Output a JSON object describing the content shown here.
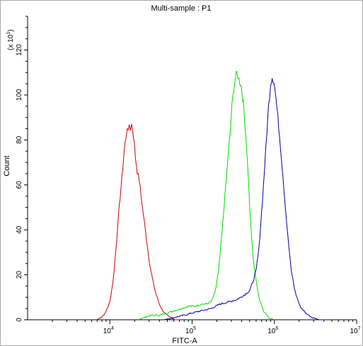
{
  "chart_data": {
    "type": "line",
    "title": "Multi-sample : P1",
    "xlabel": "FITC-A",
    "ylabel": "Count",
    "y_multiplier_label": {
      "base": "(x 10",
      "exp": "1",
      "close": ")"
    },
    "x_scale": "log",
    "xlim": [
      1000,
      10000000
    ],
    "ylim": [
      0,
      135
    ],
    "x_ticks": [
      {
        "value": 10000,
        "base": "10",
        "exp": "4"
      },
      {
        "value": 100000,
        "base": "10",
        "exp": "5"
      },
      {
        "value": 1000000,
        "base": "10",
        "exp": "6"
      },
      {
        "value": 10000000,
        "base": "10",
        "exp": "7"
      }
    ],
    "y_ticks": [
      0,
      20,
      40,
      60,
      80,
      100,
      120
    ],
    "grid": false,
    "legend": "none",
    "series": [
      {
        "color": "#cc0000",
        "points": [
          [
            6900,
            0
          ],
          [
            7800,
            1
          ],
          [
            8800,
            3
          ],
          [
            10000,
            8
          ],
          [
            11000,
            18
          ],
          [
            12000,
            34
          ],
          [
            13000,
            50
          ],
          [
            14000,
            63
          ],
          [
            15000,
            76
          ],
          [
            15800,
            82
          ],
          [
            16300,
            86
          ],
          [
            16800,
            83
          ],
          [
            17200,
            87
          ],
          [
            17800,
            85
          ],
          [
            18400,
            87
          ],
          [
            19000,
            84
          ],
          [
            19800,
            79
          ],
          [
            20500,
            72
          ],
          [
            21500,
            66
          ],
          [
            22800,
            62
          ],
          [
            24000,
            55
          ],
          [
            25500,
            47
          ],
          [
            27000,
            40
          ],
          [
            29000,
            31
          ],
          [
            31000,
            23
          ],
          [
            33500,
            17
          ],
          [
            36000,
            12
          ],
          [
            40000,
            7
          ],
          [
            44000,
            4
          ],
          [
            49000,
            2
          ],
          [
            55000,
            1
          ],
          [
            62000,
            0
          ],
          [
            70000,
            0
          ]
        ]
      },
      {
        "color": "#00dd00",
        "points": [
          [
            22000,
            0
          ],
          [
            26000,
            1
          ],
          [
            32000,
            2
          ],
          [
            40000,
            2
          ],
          [
            50000,
            3
          ],
          [
            60000,
            4
          ],
          [
            75000,
            5
          ],
          [
            90000,
            6
          ],
          [
            110000,
            6
          ],
          [
            130000,
            7
          ],
          [
            150000,
            7
          ],
          [
            170000,
            8
          ],
          [
            190000,
            12
          ],
          [
            210000,
            22
          ],
          [
            230000,
            38
          ],
          [
            250000,
            55
          ],
          [
            270000,
            70
          ],
          [
            290000,
            83
          ],
          [
            305000,
            95
          ],
          [
            320000,
            103
          ],
          [
            335000,
            107
          ],
          [
            350000,
            110
          ],
          [
            370000,
            107
          ],
          [
            395000,
            104
          ],
          [
            420000,
            96
          ],
          [
            450000,
            82
          ],
          [
            480000,
            65
          ],
          [
            510000,
            45
          ],
          [
            550000,
            28
          ],
          [
            600000,
            17
          ],
          [
            660000,
            9
          ],
          [
            740000,
            4
          ],
          [
            850000,
            1
          ],
          [
            1000000,
            0
          ]
        ]
      },
      {
        "color": "#000099",
        "points": [
          [
            45000,
            0
          ],
          [
            60000,
            1
          ],
          [
            80000,
            2
          ],
          [
            100000,
            3
          ],
          [
            130000,
            4
          ],
          [
            170000,
            5
          ],
          [
            220000,
            7
          ],
          [
            280000,
            8
          ],
          [
            350000,
            9
          ],
          [
            430000,
            11
          ],
          [
            500000,
            13
          ],
          [
            550000,
            17
          ],
          [
            600000,
            22
          ],
          [
            650000,
            32
          ],
          [
            700000,
            48
          ],
          [
            750000,
            64
          ],
          [
            800000,
            80
          ],
          [
            850000,
            95
          ],
          [
            900000,
            105
          ],
          [
            940000,
            108
          ],
          [
            990000,
            106
          ],
          [
            1050000,
            98
          ],
          [
            1130000,
            86
          ],
          [
            1220000,
            72
          ],
          [
            1330000,
            55
          ],
          [
            1450000,
            38
          ],
          [
            1600000,
            22
          ],
          [
            1800000,
            12
          ],
          [
            2050000,
            6
          ],
          [
            2400000,
            3
          ],
          [
            2900000,
            1
          ],
          [
            3500000,
            0
          ],
          [
            4200000,
            0
          ]
        ]
      }
    ]
  }
}
